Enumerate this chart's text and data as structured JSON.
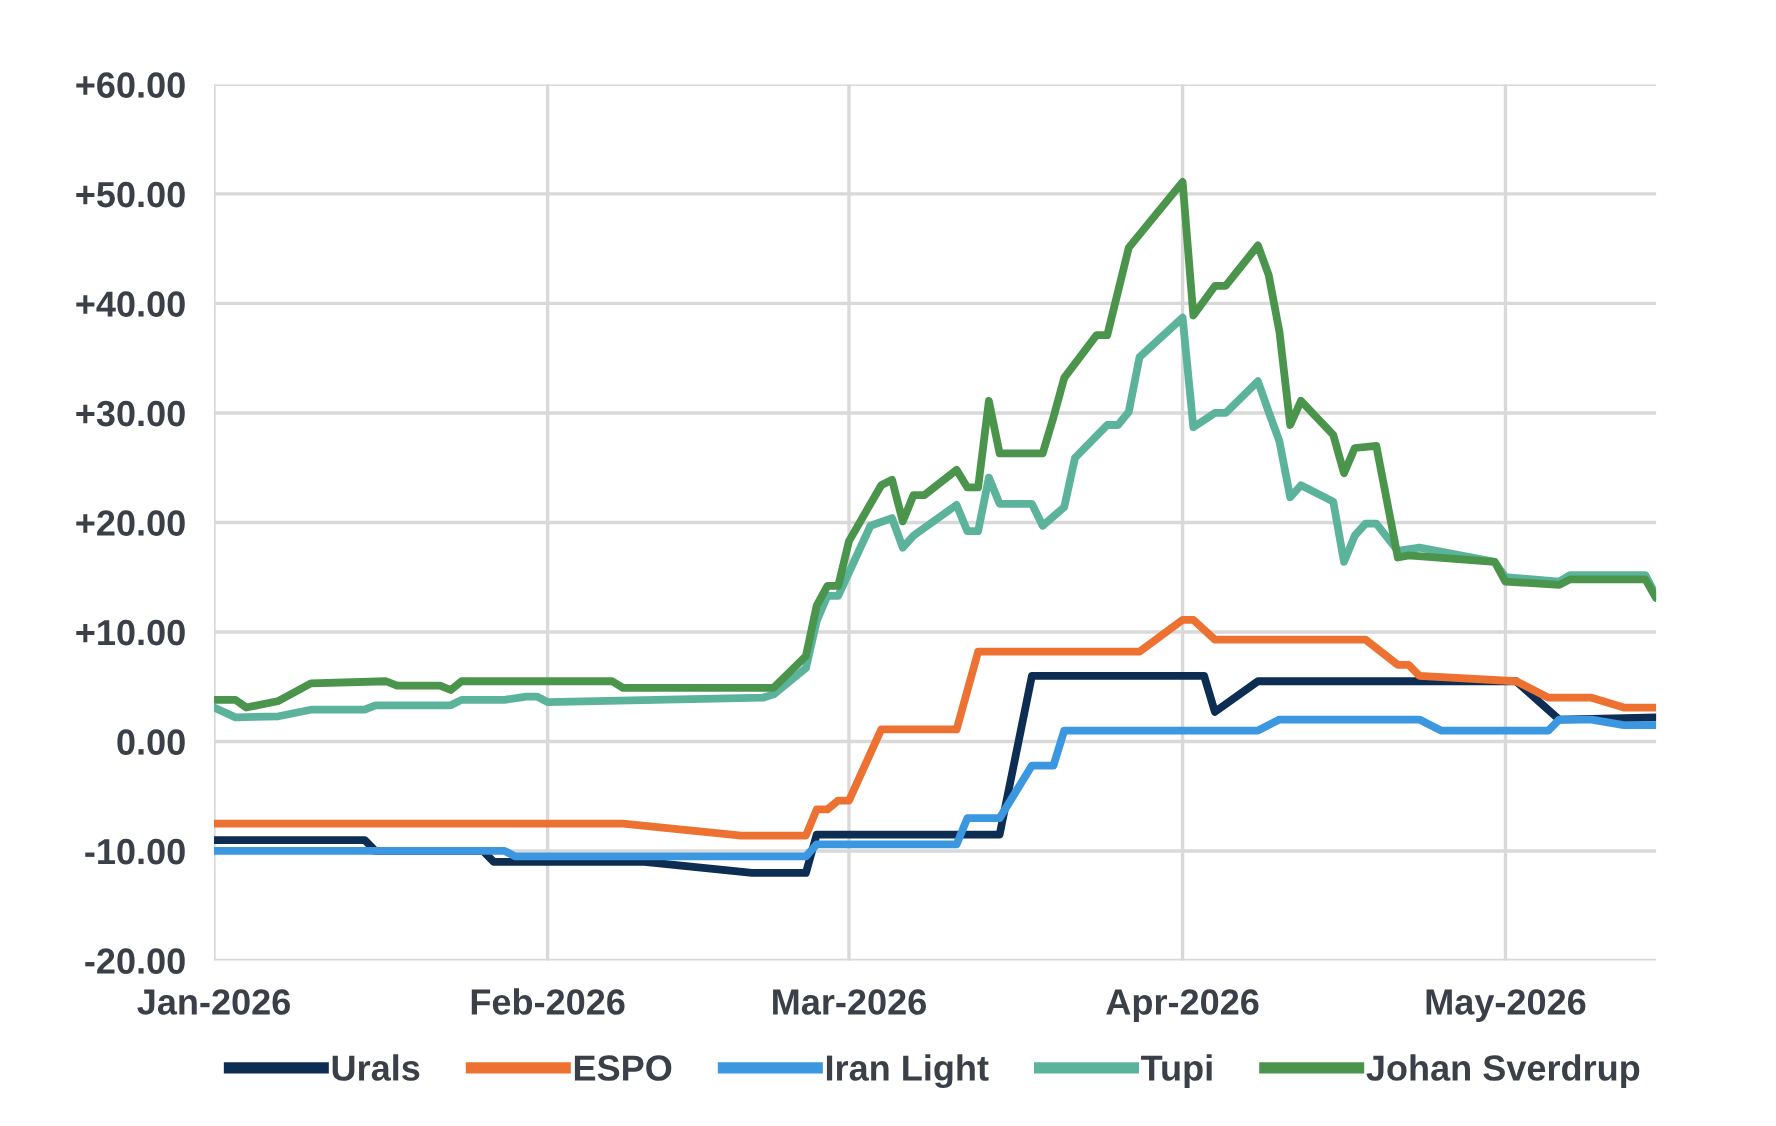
{
  "chart_data": {
    "type": "line",
    "xlim": [
      "2026-01-01",
      "2026-05-15"
    ],
    "xticks": [
      {
        "value": "2026-01-01",
        "label": "Jan-2026"
      },
      {
        "value": "2026-02-01",
        "label": "Feb-2026"
      },
      {
        "value": "2026-03-01",
        "label": "Mar-2026"
      },
      {
        "value": "2026-04-01",
        "label": "Apr-2026"
      },
      {
        "value": "2026-05-01",
        "label": "May-2026"
      }
    ],
    "ylim": [
      -20,
      60
    ],
    "yticks": [
      {
        "value": -20,
        "label": "-20.00"
      },
      {
        "value": -10,
        "label": "-10.00"
      },
      {
        "value": 0,
        "label": "0.00"
      },
      {
        "value": 10,
        "label": "+10.00"
      },
      {
        "value": 20,
        "label": "+20.00"
      },
      {
        "value": 30,
        "label": "+30.00"
      },
      {
        "value": 40,
        "label": "+40.00"
      },
      {
        "value": 50,
        "label": "+50.00"
      },
      {
        "value": 60,
        "label": "+60.00"
      }
    ],
    "grid": true,
    "legend": "bottom",
    "marker": "none",
    "line_style": "solid",
    "series": [
      {
        "name": "Urals",
        "color": "#0e2d52",
        "x": [
          "2026-01-01",
          "2026-01-15",
          "2026-01-16",
          "2026-01-26",
          "2026-01-27",
          "2026-02-10",
          "2026-02-20",
          "2026-02-25",
          "2026-02-26",
          "2026-03-15",
          "2026-03-18",
          "2026-04-03",
          "2026-04-04",
          "2026-04-08",
          "2026-05-02",
          "2026-05-06",
          "2026-05-15"
        ],
        "values": [
          -9.0,
          -9.0,
          -10.0,
          -10.0,
          -11.0,
          -11.0,
          -12.0,
          -12.0,
          -8.5,
          -8.5,
          6.0,
          6.0,
          2.7,
          5.5,
          5.5,
          2.0,
          2.2
        ]
      },
      {
        "name": "ESPO",
        "color": "#ed7231",
        "x": [
          "2026-01-01",
          "2026-02-08",
          "2026-02-19",
          "2026-02-25",
          "2026-02-26",
          "2026-02-27",
          "2026-02-28",
          "2026-03-01",
          "2026-03-04",
          "2026-03-11",
          "2026-03-13",
          "2026-03-28",
          "2026-04-01",
          "2026-04-02",
          "2026-04-04",
          "2026-04-18",
          "2026-04-21",
          "2026-04-22",
          "2026-04-23",
          "2026-05-02",
          "2026-05-05",
          "2026-05-09",
          "2026-05-12",
          "2026-05-15"
        ],
        "values": [
          -7.5,
          -7.5,
          -8.6,
          -8.6,
          -6.2,
          -6.2,
          -5.4,
          -5.4,
          1.1,
          1.1,
          8.2,
          8.2,
          11.1,
          11.1,
          9.3,
          9.3,
          7.0,
          7.0,
          6.0,
          5.5,
          4.0,
          4.0,
          3.1,
          3.1
        ]
      },
      {
        "name": "Iran Light",
        "color": "#3a97e0",
        "x": [
          "2026-01-01",
          "2026-01-28",
          "2026-01-29",
          "2026-02-25",
          "2026-02-26",
          "2026-03-11",
          "2026-03-12",
          "2026-03-15",
          "2026-03-18",
          "2026-03-20",
          "2026-03-21",
          "2026-04-08",
          "2026-04-10",
          "2026-04-23",
          "2026-04-25",
          "2026-05-05",
          "2026-05-06",
          "2026-05-09",
          "2026-05-12",
          "2026-05-15"
        ],
        "values": [
          -10.0,
          -10.0,
          -10.5,
          -10.5,
          -9.4,
          -9.4,
          -7.0,
          -7.0,
          -2.2,
          -2.2,
          1.0,
          1.0,
          2.0,
          2.0,
          1.0,
          1.0,
          2.0,
          2.0,
          1.5,
          1.5
        ]
      },
      {
        "name": "Tupi",
        "color": "#5cb39c",
        "x": [
          "2026-01-01",
          "2026-01-03",
          "2026-01-07",
          "2026-01-10",
          "2026-01-15",
          "2026-01-16",
          "2026-01-23",
          "2026-01-24",
          "2026-01-28",
          "2026-01-30",
          "2026-01-31",
          "2026-02-01",
          "2026-02-21",
          "2026-02-22",
          "2026-02-25",
          "2026-02-26",
          "2026-02-27",
          "2026-02-28",
          "2026-03-03",
          "2026-03-05",
          "2026-03-06",
          "2026-03-07",
          "2026-03-11",
          "2026-03-12",
          "2026-03-13",
          "2026-03-14",
          "2026-03-15",
          "2026-03-18",
          "2026-03-19",
          "2026-03-21",
          "2026-03-22",
          "2026-03-25",
          "2026-03-26",
          "2026-03-27",
          "2026-03-28",
          "2026-04-01",
          "2026-04-02",
          "2026-04-04",
          "2026-04-05",
          "2026-04-08",
          "2026-04-09",
          "2026-04-10",
          "2026-04-11",
          "2026-04-12",
          "2026-04-15",
          "2026-04-16",
          "2026-04-17",
          "2026-04-18",
          "2026-04-19",
          "2026-04-21",
          "2026-04-23",
          "2026-04-30",
          "2026-05-01",
          "2026-05-06",
          "2026-05-07",
          "2026-05-14",
          "2026-05-15"
        ],
        "values": [
          3.1,
          2.2,
          2.3,
          2.9,
          2.9,
          3.3,
          3.3,
          3.8,
          3.8,
          4.1,
          4.1,
          3.6,
          4.0,
          4.3,
          6.7,
          11.0,
          13.3,
          13.3,
          19.7,
          20.4,
          17.7,
          18.8,
          21.6,
          19.2,
          19.2,
          24.1,
          21.7,
          21.7,
          19.7,
          21.4,
          25.9,
          28.9,
          28.9,
          30.1,
          35.1,
          38.7,
          28.7,
          30.0,
          30.0,
          32.9,
          30.1,
          27.4,
          22.3,
          23.4,
          21.9,
          16.4,
          18.8,
          19.9,
          19.9,
          17.4,
          17.7,
          16.4,
          15.0,
          14.6,
          15.2,
          15.2,
          13.3
        ]
      },
      {
        "name": "Johan Sverdrup",
        "color": "#4a954b",
        "x": [
          "2026-01-01",
          "2026-01-03",
          "2026-01-04",
          "2026-01-07",
          "2026-01-10",
          "2026-01-17",
          "2026-01-18",
          "2026-01-22",
          "2026-01-23",
          "2026-01-24",
          "2026-02-07",
          "2026-02-08",
          "2026-02-22",
          "2026-02-25",
          "2026-02-26",
          "2026-02-27",
          "2026-02-28",
          "2026-03-01",
          "2026-03-04",
          "2026-03-05",
          "2026-03-06",
          "2026-03-07",
          "2026-03-08",
          "2026-03-11",
          "2026-03-12",
          "2026-03-13",
          "2026-03-14",
          "2026-03-15",
          "2026-03-19",
          "2026-03-20",
          "2026-03-21",
          "2026-03-24",
          "2026-03-25",
          "2026-03-27",
          "2026-04-01",
          "2026-04-02",
          "2026-04-04",
          "2026-04-05",
          "2026-04-08",
          "2026-04-09",
          "2026-04-10",
          "2026-04-11",
          "2026-04-12",
          "2026-04-15",
          "2026-04-16",
          "2026-04-17",
          "2026-04-19",
          "2026-04-21",
          "2026-04-22",
          "2026-04-30",
          "2026-05-01",
          "2026-05-06",
          "2026-05-07",
          "2026-05-14",
          "2026-05-15"
        ],
        "values": [
          3.8,
          3.8,
          3.1,
          3.7,
          5.3,
          5.5,
          5.1,
          5.1,
          4.7,
          5.5,
          5.5,
          4.9,
          4.9,
          7.8,
          12.4,
          14.2,
          14.2,
          18.3,
          23.4,
          23.9,
          20.1,
          22.5,
          22.5,
          24.8,
          23.2,
          23.2,
          31.1,
          26.3,
          26.3,
          29.6,
          33.2,
          37.1,
          37.1,
          45.1,
          51.1,
          38.9,
          41.6,
          41.6,
          45.3,
          42.6,
          37.4,
          28.9,
          31.1,
          28.0,
          24.5,
          26.8,
          27.0,
          16.8,
          17.0,
          16.4,
          14.6,
          14.3,
          14.8,
          14.8,
          13.1
        ]
      }
    ]
  }
}
